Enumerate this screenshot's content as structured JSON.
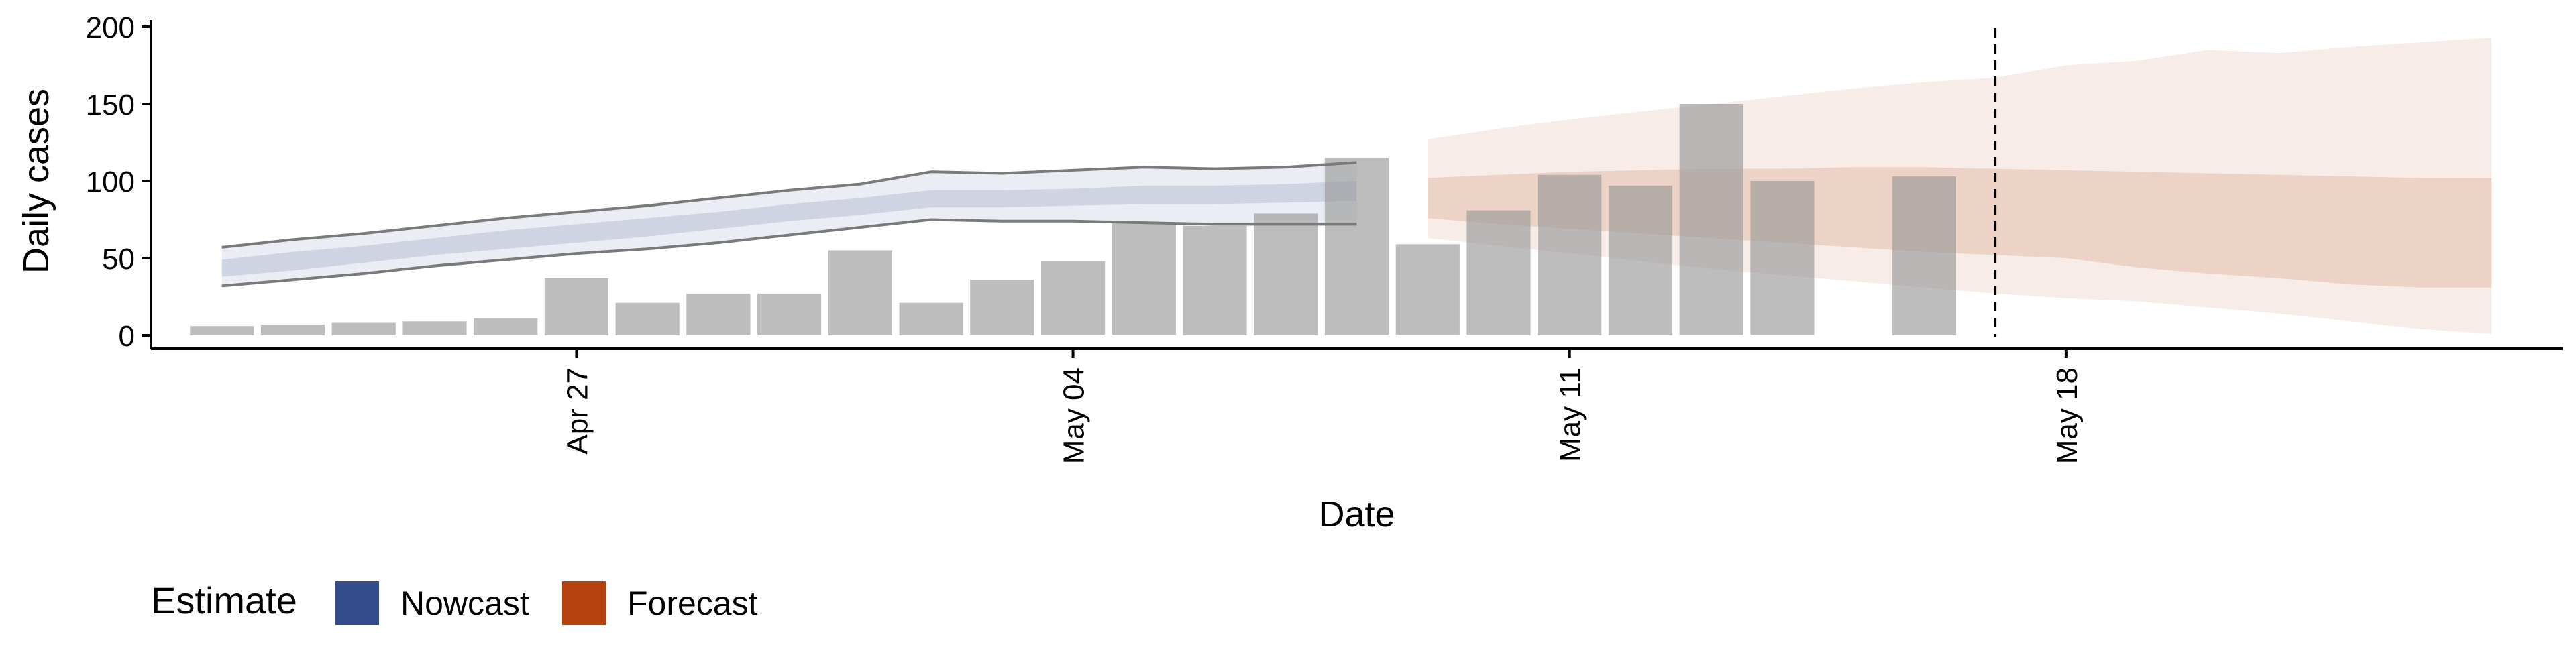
{
  "chart_data": {
    "type": "bar",
    "xlabel": "Date",
    "ylabel": "Daily cases",
    "ylim": [
      0,
      200
    ],
    "yticks": [
      0,
      50,
      100,
      150,
      200
    ],
    "x_ticks": [
      {
        "date": "2020-04-27",
        "label": "Apr 27"
      },
      {
        "date": "2020-05-04",
        "label": "May 04"
      },
      {
        "date": "2020-05-11",
        "label": "May 11"
      },
      {
        "date": "2020-05-18",
        "label": "May 18"
      }
    ],
    "x_range": [
      "2020-04-21",
      "2020-05-25"
    ],
    "reported_cases": [
      {
        "date": "2020-04-22",
        "value": 6
      },
      {
        "date": "2020-04-23",
        "value": 7
      },
      {
        "date": "2020-04-24",
        "value": 8
      },
      {
        "date": "2020-04-25",
        "value": 9
      },
      {
        "date": "2020-04-26",
        "value": 11
      },
      {
        "date": "2020-04-27",
        "value": 37
      },
      {
        "date": "2020-04-28",
        "value": 21
      },
      {
        "date": "2020-04-29",
        "value": 27
      },
      {
        "date": "2020-04-30",
        "value": 27
      },
      {
        "date": "2020-05-01",
        "value": 55
      },
      {
        "date": "2020-05-02",
        "value": 21
      },
      {
        "date": "2020-05-03",
        "value": 36
      },
      {
        "date": "2020-05-04",
        "value": 48
      },
      {
        "date": "2020-05-05",
        "value": 73
      },
      {
        "date": "2020-05-06",
        "value": 71
      },
      {
        "date": "2020-05-07",
        "value": 79
      },
      {
        "date": "2020-05-08",
        "value": 115
      },
      {
        "date": "2020-05-09",
        "value": 59
      },
      {
        "date": "2020-05-10",
        "value": 81
      },
      {
        "date": "2020-05-11",
        "value": 104
      },
      {
        "date": "2020-05-12",
        "value": 97
      },
      {
        "date": "2020-05-13",
        "value": 150
      },
      {
        "date": "2020-05-14",
        "value": 100
      },
      {
        "date": "2020-05-16",
        "value": 103
      }
    ],
    "series": [
      {
        "name": "Nowcast",
        "color": "#354c8a",
        "dates": [
          "2020-04-22",
          "2020-04-23",
          "2020-04-24",
          "2020-04-25",
          "2020-04-26",
          "2020-04-27",
          "2020-04-28",
          "2020-04-29",
          "2020-04-30",
          "2020-05-01",
          "2020-05-02",
          "2020-05-03",
          "2020-05-04",
          "2020-05-05",
          "2020-05-06",
          "2020-05-07",
          "2020-05-08"
        ],
        "lower_90": [
          32,
          36,
          40,
          45,
          49,
          53,
          56,
          60,
          65,
          70,
          75,
          74,
          74,
          73,
          72,
          72,
          72
        ],
        "upper_90": [
          57,
          62,
          66,
          71,
          76,
          80,
          84,
          89,
          94,
          98,
          106,
          105,
          107,
          109,
          108,
          109,
          112
        ],
        "lower_50": [
          38,
          42,
          47,
          52,
          56,
          60,
          64,
          69,
          74,
          78,
          83,
          83,
          84,
          85,
          85,
          86,
          87
        ],
        "upper_50": [
          49,
          54,
          58,
          63,
          68,
          72,
          76,
          80,
          85,
          89,
          94,
          94,
          95,
          97,
          97,
          98,
          100
        ]
      },
      {
        "name": "Forecast",
        "color": "#b5410f",
        "dates": [
          "2020-05-09",
          "2020-05-10",
          "2020-05-11",
          "2020-05-12",
          "2020-05-13",
          "2020-05-14",
          "2020-05-15",
          "2020-05-16",
          "2020-05-17",
          "2020-05-18",
          "2020-05-19",
          "2020-05-20",
          "2020-05-21",
          "2020-05-22",
          "2020-05-23",
          "2020-05-24"
        ],
        "lower_90": [
          63,
          58,
          53,
          48,
          43,
          39,
          35,
          31,
          27,
          24,
          22,
          18,
          14,
          9,
          4,
          1
        ],
        "upper_90": [
          127,
          134,
          140,
          145,
          150,
          155,
          160,
          164,
          167,
          175,
          178,
          185,
          183,
          187,
          190,
          193
        ],
        "lower_50": [
          76,
          72,
          69,
          66,
          63,
          60,
          57,
          54,
          52,
          50,
          44,
          40,
          37,
          33,
          31,
          31
        ],
        "upper_50": [
          102,
          104,
          106,
          107,
          108,
          108,
          109,
          109,
          108,
          107,
          106,
          105,
          104,
          103,
          102,
          102
        ]
      }
    ],
    "report_date": "2020-05-17",
    "legend": {
      "title": "Estimate",
      "position": "bottom-left",
      "items": [
        "Nowcast",
        "Forecast"
      ]
    },
    "grid": false
  }
}
